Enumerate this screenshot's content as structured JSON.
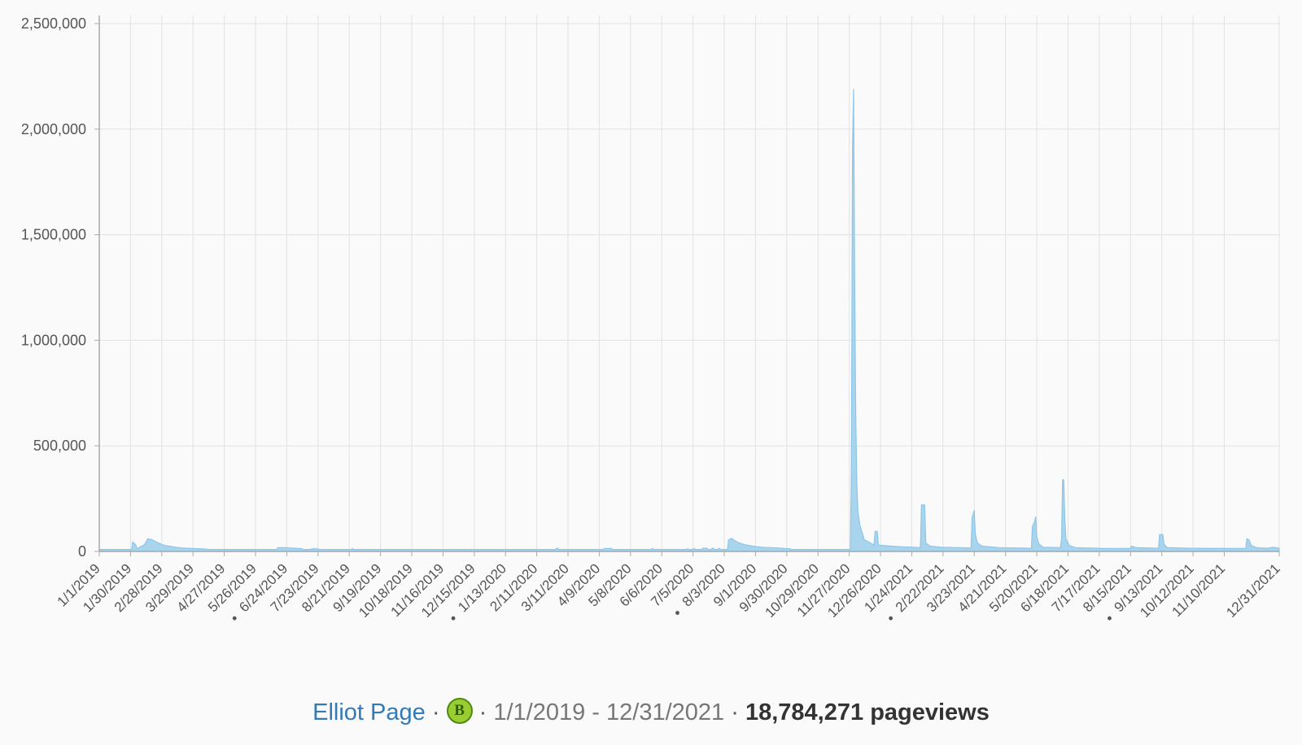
{
  "legend": {
    "page": "Elliot Page",
    "badge_letter": "B",
    "date_range": "1/1/2019 - 12/31/2021",
    "total": "18,784,271",
    "unit": "pageviews",
    "separator": "·"
  },
  "chart_data": {
    "type": "area",
    "title": "",
    "xlabel": "",
    "ylabel": "",
    "x_start": "2019-01-01",
    "x_end": "2021-12-31",
    "ylim": [
      0,
      2500000
    ],
    "y_ticks": [
      "0",
      "500,000",
      "1,000,000",
      "1,500,000",
      "2,000,000",
      "2,500,000"
    ],
    "x_tick_labels": [
      {
        "date": "2019-01-01",
        "label": "1/1/2019"
      },
      {
        "date": "2019-01-30",
        "label": "1/30/2019"
      },
      {
        "date": "2019-02-28",
        "label": "2/28/2019"
      },
      {
        "date": "2019-03-29",
        "label": "3/29/2019"
      },
      {
        "date": "2019-04-27",
        "label": "4/27/2019"
      },
      {
        "date": "2019-05-26",
        "label": "5/26/2019"
      },
      {
        "date": "2019-06-24",
        "label": "6/24/2019",
        "dot": true
      },
      {
        "date": "2019-07-23",
        "label": "7/23/2019"
      },
      {
        "date": "2019-08-21",
        "label": "8/21/2019"
      },
      {
        "date": "2019-09-19",
        "label": "9/19/2019"
      },
      {
        "date": "2019-10-18",
        "label": "10/18/2019"
      },
      {
        "date": "2019-11-16",
        "label": "11/16/2019"
      },
      {
        "date": "2019-12-15",
        "label": "12/15/2019"
      },
      {
        "date": "2020-01-13",
        "label": "1/13/2020",
        "dot": true
      },
      {
        "date": "2020-02-11",
        "label": "2/11/2020"
      },
      {
        "date": "2020-03-11",
        "label": "3/11/2020"
      },
      {
        "date": "2020-04-09",
        "label": "4/9/2020"
      },
      {
        "date": "2020-05-08",
        "label": "5/8/2020"
      },
      {
        "date": "2020-06-06",
        "label": "6/6/2020"
      },
      {
        "date": "2020-07-05",
        "label": "7/5/2020"
      },
      {
        "date": "2020-08-03",
        "label": "8/3/2020",
        "dot": true
      },
      {
        "date": "2020-09-01",
        "label": "9/1/2020"
      },
      {
        "date": "2020-09-30",
        "label": "9/30/2020"
      },
      {
        "date": "2020-10-29",
        "label": "10/29/2020"
      },
      {
        "date": "2020-11-27",
        "label": "11/27/2020"
      },
      {
        "date": "2020-12-26",
        "label": "12/26/2020"
      },
      {
        "date": "2021-01-24",
        "label": "1/24/2021"
      },
      {
        "date": "2021-02-22",
        "label": "2/22/2021",
        "dot": true
      },
      {
        "date": "2021-03-23",
        "label": "3/23/2021"
      },
      {
        "date": "2021-04-21",
        "label": "4/21/2021"
      },
      {
        "date": "2021-05-20",
        "label": "5/20/2021"
      },
      {
        "date": "2021-06-18",
        "label": "6/18/2021"
      },
      {
        "date": "2021-07-17",
        "label": "7/17/2021"
      },
      {
        "date": "2021-08-15",
        "label": "8/15/2021"
      },
      {
        "date": "2021-09-13",
        "label": "9/13/2021",
        "dot": true
      },
      {
        "date": "2021-10-12",
        "label": "10/12/2021"
      },
      {
        "date": "2021-11-10",
        "label": "11/10/2021"
      },
      {
        "date": "2021-12-31",
        "label": "12/31/2021"
      }
    ],
    "grid": true,
    "legend_position": "bottom-center",
    "colors": {
      "fill": "#a8d4ee",
      "stroke": "#8ec6e8",
      "grid": "#e2e2e2",
      "axis": "#aaaaaa",
      "text": "#555555"
    },
    "baseline": 9000,
    "series": [
      {
        "values": [
          [
            "2019-01-01",
            9000
          ],
          [
            "2019-01-31",
            9000
          ],
          [
            "2019-02-01",
            45000
          ],
          [
            "2019-02-04",
            30000
          ],
          [
            "2019-02-05",
            12000
          ],
          [
            "2019-02-08",
            22000
          ],
          [
            "2019-02-12",
            32000
          ],
          [
            "2019-02-15",
            60000
          ],
          [
            "2019-02-19",
            55000
          ],
          [
            "2019-02-23",
            45000
          ],
          [
            "2019-02-27",
            35000
          ],
          [
            "2019-03-03",
            28000
          ],
          [
            "2019-03-08",
            24000
          ],
          [
            "2019-03-13",
            20000
          ],
          [
            "2019-03-20",
            16000
          ],
          [
            "2019-03-28",
            14000
          ],
          [
            "2019-04-08",
            12000
          ],
          [
            "2019-04-12",
            10000
          ],
          [
            "2019-04-13",
            9000
          ],
          [
            "2019-06-14",
            9000
          ],
          [
            "2019-06-16",
            18000
          ],
          [
            "2019-06-24",
            18000
          ],
          [
            "2019-07-02",
            15000
          ],
          [
            "2019-07-08",
            13000
          ],
          [
            "2019-07-09",
            9000
          ],
          [
            "2019-07-15",
            9000
          ],
          [
            "2019-07-18",
            13000
          ],
          [
            "2019-07-23",
            12000
          ],
          [
            "2019-07-24",
            9000
          ],
          [
            "2019-08-23",
            9000
          ],
          [
            "2019-08-24",
            14000
          ],
          [
            "2019-08-25",
            9000
          ],
          [
            "2020-02-28",
            9000
          ],
          [
            "2020-03-01",
            16000
          ],
          [
            "2020-03-03",
            9000
          ],
          [
            "2020-04-12",
            9000
          ],
          [
            "2020-04-14",
            14000
          ],
          [
            "2020-04-20",
            14000
          ],
          [
            "2020-04-22",
            9000
          ],
          [
            "2020-05-27",
            9000
          ],
          [
            "2020-05-28",
            14000
          ],
          [
            "2020-05-30",
            9000
          ],
          [
            "2020-06-29",
            9000
          ],
          [
            "2020-06-30",
            13000
          ],
          [
            "2020-07-01",
            9000
          ],
          [
            "2020-07-05",
            9000
          ],
          [
            "2020-07-06",
            14000
          ],
          [
            "2020-07-08",
            9000
          ],
          [
            "2020-07-13",
            9000
          ],
          [
            "2020-07-14",
            15000
          ],
          [
            "2020-07-18",
            15000
          ],
          [
            "2020-07-19",
            9000
          ],
          [
            "2020-07-22",
            9000
          ],
          [
            "2020-07-23",
            16000
          ],
          [
            "2020-07-26",
            9000
          ],
          [
            "2020-07-28",
            9000
          ],
          [
            "2020-07-29",
            15000
          ],
          [
            "2020-07-31",
            9000
          ],
          [
            "2020-08-06",
            9000
          ],
          [
            "2020-08-07",
            55000
          ],
          [
            "2020-08-10",
            62000
          ],
          [
            "2020-08-13",
            50000
          ],
          [
            "2020-08-17",
            40000
          ],
          [
            "2020-08-22",
            32000
          ],
          [
            "2020-08-28",
            26000
          ],
          [
            "2020-09-03",
            22000
          ],
          [
            "2020-09-10",
            19000
          ],
          [
            "2020-09-17",
            18000
          ],
          [
            "2020-09-22",
            16000
          ],
          [
            "2020-09-30",
            13000
          ],
          [
            "2020-10-03",
            13000
          ],
          [
            "2020-10-04",
            9000
          ],
          [
            "2020-11-28",
            9000
          ],
          [
            "2020-11-29",
            400000
          ],
          [
            "2020-11-30",
            1900000
          ],
          [
            "2020-12-01",
            2190000
          ],
          [
            "2020-12-02",
            1300000
          ],
          [
            "2020-12-03",
            650000
          ],
          [
            "2020-12-04",
            330000
          ],
          [
            "2020-12-05",
            190000
          ],
          [
            "2020-12-07",
            120000
          ],
          [
            "2020-12-09",
            90000
          ],
          [
            "2020-12-11",
            55000
          ],
          [
            "2020-12-15",
            45000
          ],
          [
            "2020-12-20",
            30000
          ],
          [
            "2020-12-21",
            95000
          ],
          [
            "2020-12-23",
            95000
          ],
          [
            "2020-12-24",
            30000
          ],
          [
            "2021-01-05",
            25000
          ],
          [
            "2021-01-15",
            22000
          ],
          [
            "2021-01-25",
            20000
          ],
          [
            "2021-02-01",
            18000
          ],
          [
            "2021-02-02",
            220000
          ],
          [
            "2021-02-05",
            220000
          ],
          [
            "2021-02-06",
            40000
          ],
          [
            "2021-02-10",
            25000
          ],
          [
            "2021-02-20",
            20000
          ],
          [
            "2021-03-10",
            18000
          ],
          [
            "2021-03-20",
            16000
          ],
          [
            "2021-03-21",
            160000
          ],
          [
            "2021-03-23",
            195000
          ],
          [
            "2021-03-24",
            80000
          ],
          [
            "2021-03-26",
            40000
          ],
          [
            "2021-03-30",
            25000
          ],
          [
            "2021-04-15",
            18000
          ],
          [
            "2021-05-05",
            16000
          ],
          [
            "2021-05-15",
            15000
          ],
          [
            "2021-05-16",
            120000
          ],
          [
            "2021-05-18",
            140000
          ],
          [
            "2021-05-19",
            165000
          ],
          [
            "2021-05-20",
            70000
          ],
          [
            "2021-05-22",
            35000
          ],
          [
            "2021-05-26",
            20000
          ],
          [
            "2021-06-11",
            18000
          ],
          [
            "2021-06-12",
            60000
          ],
          [
            "2021-06-13",
            340000
          ],
          [
            "2021-06-14",
            340000
          ],
          [
            "2021-06-15",
            160000
          ],
          [
            "2021-06-16",
            60000
          ],
          [
            "2021-06-19",
            28000
          ],
          [
            "2021-06-25",
            18000
          ],
          [
            "2021-07-15",
            15000
          ],
          [
            "2021-07-20",
            14000
          ],
          [
            "2021-08-10",
            14000
          ],
          [
            "2021-08-15",
            14000
          ],
          [
            "2021-08-16",
            25000
          ],
          [
            "2021-08-20",
            18000
          ],
          [
            "2021-09-10",
            15000
          ],
          [
            "2021-09-11",
            80000
          ],
          [
            "2021-09-14",
            80000
          ],
          [
            "2021-09-15",
            35000
          ],
          [
            "2021-09-18",
            18000
          ],
          [
            "2021-10-10",
            15000
          ],
          [
            "2021-11-15",
            14000
          ],
          [
            "2021-11-30",
            14000
          ],
          [
            "2021-12-01",
            60000
          ],
          [
            "2021-12-03",
            55000
          ],
          [
            "2021-12-05",
            28000
          ],
          [
            "2021-12-10",
            18000
          ],
          [
            "2021-12-20",
            15000
          ],
          [
            "2021-12-26",
            20000
          ],
          [
            "2021-12-31",
            15000
          ]
        ]
      }
    ]
  }
}
